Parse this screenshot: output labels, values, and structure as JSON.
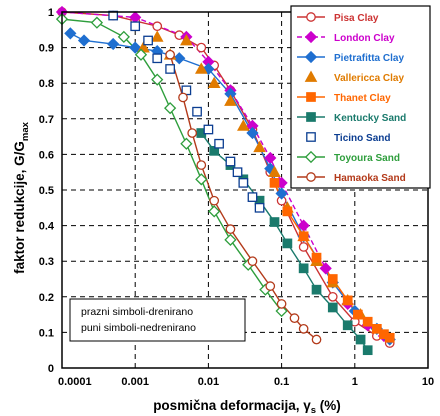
{
  "chart_data": {
    "type": "scatter",
    "x_scale": "log",
    "xlim": [
      0.0001,
      10
    ],
    "ylim": [
      0,
      1
    ],
    "x_ticks": [
      "0.0001",
      "0.001",
      "0.01",
      "0.1",
      "1",
      "10"
    ],
    "y_ticks": [
      "0",
      "0.1",
      "0.2",
      "0.3",
      "0.4",
      "0.5",
      "0.6",
      "0.7",
      "0.8",
      "0.9",
      "1"
    ],
    "ylabel": {
      "main": "faktor redukcije, G/G",
      "sub": "max"
    },
    "xlabel": {
      "main": "posmična deformacija, γ",
      "sub": "s",
      "unit": " (%)"
    },
    "grid": true,
    "legend_position": "top-right",
    "annotation": [
      "prazni simboli-drenirano",
      "puni simboli-nedrenirano"
    ],
    "series": [
      {
        "name": "Pisa Clay",
        "color": "#cc3333",
        "marker": "circle-open",
        "line": "solid",
        "points": [
          [
            0.0001,
            1.0
          ],
          [
            0.0005,
            0.99
          ],
          [
            0.001,
            0.975
          ],
          [
            0.002,
            0.96
          ],
          [
            0.004,
            0.935
          ],
          [
            0.008,
            0.9
          ],
          [
            0.012,
            0.85
          ],
          [
            0.02,
            0.78
          ],
          [
            0.04,
            0.67
          ],
          [
            0.07,
            0.55
          ],
          [
            0.1,
            0.47
          ],
          [
            0.2,
            0.34
          ],
          [
            0.5,
            0.2
          ],
          [
            1,
            0.13
          ],
          [
            2,
            0.09
          ],
          [
            3,
            0.07
          ]
        ]
      },
      {
        "name": "London Clay",
        "color": "#cc00cc",
        "marker": "diamond-filled",
        "line": "dashed",
        "points": [
          [
            0.0001,
            1.0
          ],
          [
            0.001,
            0.985
          ],
          [
            0.005,
            0.93
          ],
          [
            0.01,
            0.86
          ],
          [
            0.02,
            0.78
          ],
          [
            0.04,
            0.68
          ],
          [
            0.07,
            0.59
          ],
          [
            0.1,
            0.52
          ],
          [
            0.2,
            0.4
          ],
          [
            0.4,
            0.28
          ],
          [
            0.8,
            0.18
          ],
          [
            1.5,
            0.12
          ],
          [
            2.5,
            0.09
          ]
        ]
      },
      {
        "name": "Pietrafitta Clay",
        "color": "#1f6fd0",
        "marker": "diamond-filled",
        "line": "solid",
        "points": [
          [
            0.00013,
            0.94
          ],
          [
            0.0002,
            0.92
          ],
          [
            0.0005,
            0.91
          ],
          [
            0.001,
            0.9
          ],
          [
            0.002,
            0.89
          ],
          [
            0.004,
            0.87
          ],
          [
            0.01,
            0.84
          ],
          [
            0.02,
            0.77
          ],
          [
            0.04,
            0.66
          ],
          [
            0.07,
            0.56
          ],
          [
            0.1,
            0.49
          ],
          [
            0.2,
            0.37
          ],
          [
            0.5,
            0.24
          ],
          [
            1,
            0.16
          ],
          [
            2,
            0.11
          ],
          [
            3,
            0.08
          ]
        ]
      },
      {
        "name": "Vallericca Clay",
        "color": "#e07b00",
        "marker": "triangle-filled",
        "line": "none",
        "points": [
          [
            0.0013,
            0.9
          ],
          [
            0.002,
            0.93
          ],
          [
            0.003,
            0.88
          ],
          [
            0.005,
            0.92
          ],
          [
            0.008,
            0.84
          ],
          [
            0.012,
            0.8
          ],
          [
            0.02,
            0.75
          ],
          [
            0.03,
            0.68
          ],
          [
            0.05,
            0.62
          ],
          [
            0.08,
            0.55
          ],
          [
            0.12,
            0.45
          ],
          [
            0.2,
            0.37
          ],
          [
            0.3,
            0.3
          ],
          [
            0.5,
            0.24
          ],
          [
            0.8,
            0.19
          ],
          [
            1.2,
            0.15
          ]
        ]
      },
      {
        "name": "Thanet Clay",
        "color": "#ff6600",
        "marker": "square-filled",
        "line": "solid",
        "points": [
          [
            0.08,
            0.52
          ],
          [
            0.12,
            0.44
          ],
          [
            0.2,
            0.37
          ],
          [
            0.3,
            0.31
          ],
          [
            0.5,
            0.25
          ],
          [
            0.8,
            0.19
          ],
          [
            1.1,
            0.15
          ],
          [
            1.5,
            0.13
          ],
          [
            2,
            0.11
          ],
          [
            2.5,
            0.095
          ],
          [
            3,
            0.085
          ]
        ]
      },
      {
        "name": "Kentucky Sand",
        "color": "#1a7a6c",
        "marker": "square-filled",
        "line": "solid",
        "points": [
          [
            0.008,
            0.66
          ],
          [
            0.012,
            0.61
          ],
          [
            0.02,
            0.57
          ],
          [
            0.03,
            0.53
          ],
          [
            0.05,
            0.47
          ],
          [
            0.08,
            0.41
          ],
          [
            0.12,
            0.35
          ],
          [
            0.2,
            0.28
          ],
          [
            0.3,
            0.22
          ],
          [
            0.5,
            0.17
          ],
          [
            0.8,
            0.12
          ],
          [
            1.2,
            0.08
          ],
          [
            1.5,
            0.05
          ]
        ]
      },
      {
        "name": "Ticino Sand",
        "color": "#0b3d91",
        "marker": "square-open",
        "line": "none",
        "points": [
          [
            0.0005,
            0.99
          ],
          [
            0.001,
            0.96
          ],
          [
            0.0015,
            0.92
          ],
          [
            0.002,
            0.87
          ],
          [
            0.003,
            0.84
          ],
          [
            0.005,
            0.78
          ],
          [
            0.007,
            0.72
          ],
          [
            0.01,
            0.67
          ],
          [
            0.014,
            0.63
          ],
          [
            0.02,
            0.58
          ],
          [
            0.025,
            0.55
          ],
          [
            0.03,
            0.52
          ],
          [
            0.04,
            0.48
          ],
          [
            0.05,
            0.45
          ]
        ]
      },
      {
        "name": "Toyoura Sand",
        "color": "#2e9e3c",
        "marker": "diamond-open",
        "line": "solid",
        "points": [
          [
            0.0001,
            0.98
          ],
          [
            0.0003,
            0.97
          ],
          [
            0.0007,
            0.93
          ],
          [
            0.0012,
            0.88
          ],
          [
            0.002,
            0.81
          ],
          [
            0.003,
            0.73
          ],
          [
            0.005,
            0.63
          ],
          [
            0.008,
            0.53
          ],
          [
            0.012,
            0.44
          ],
          [
            0.02,
            0.36
          ],
          [
            0.035,
            0.29
          ],
          [
            0.06,
            0.22
          ],
          [
            0.1,
            0.16
          ]
        ]
      },
      {
        "name": "Hamaoka Sand",
        "color": "#b33a1a",
        "marker": "circle-open",
        "line": "solid",
        "points": [
          [
            0.003,
            0.88
          ],
          [
            0.0045,
            0.76
          ],
          [
            0.006,
            0.66
          ],
          [
            0.008,
            0.57
          ],
          [
            0.012,
            0.47
          ],
          [
            0.02,
            0.39
          ],
          [
            0.04,
            0.3
          ],
          [
            0.07,
            0.23
          ],
          [
            0.1,
            0.18
          ],
          [
            0.15,
            0.14
          ],
          [
            0.2,
            0.11
          ],
          [
            0.3,
            0.08
          ]
        ]
      }
    ]
  }
}
